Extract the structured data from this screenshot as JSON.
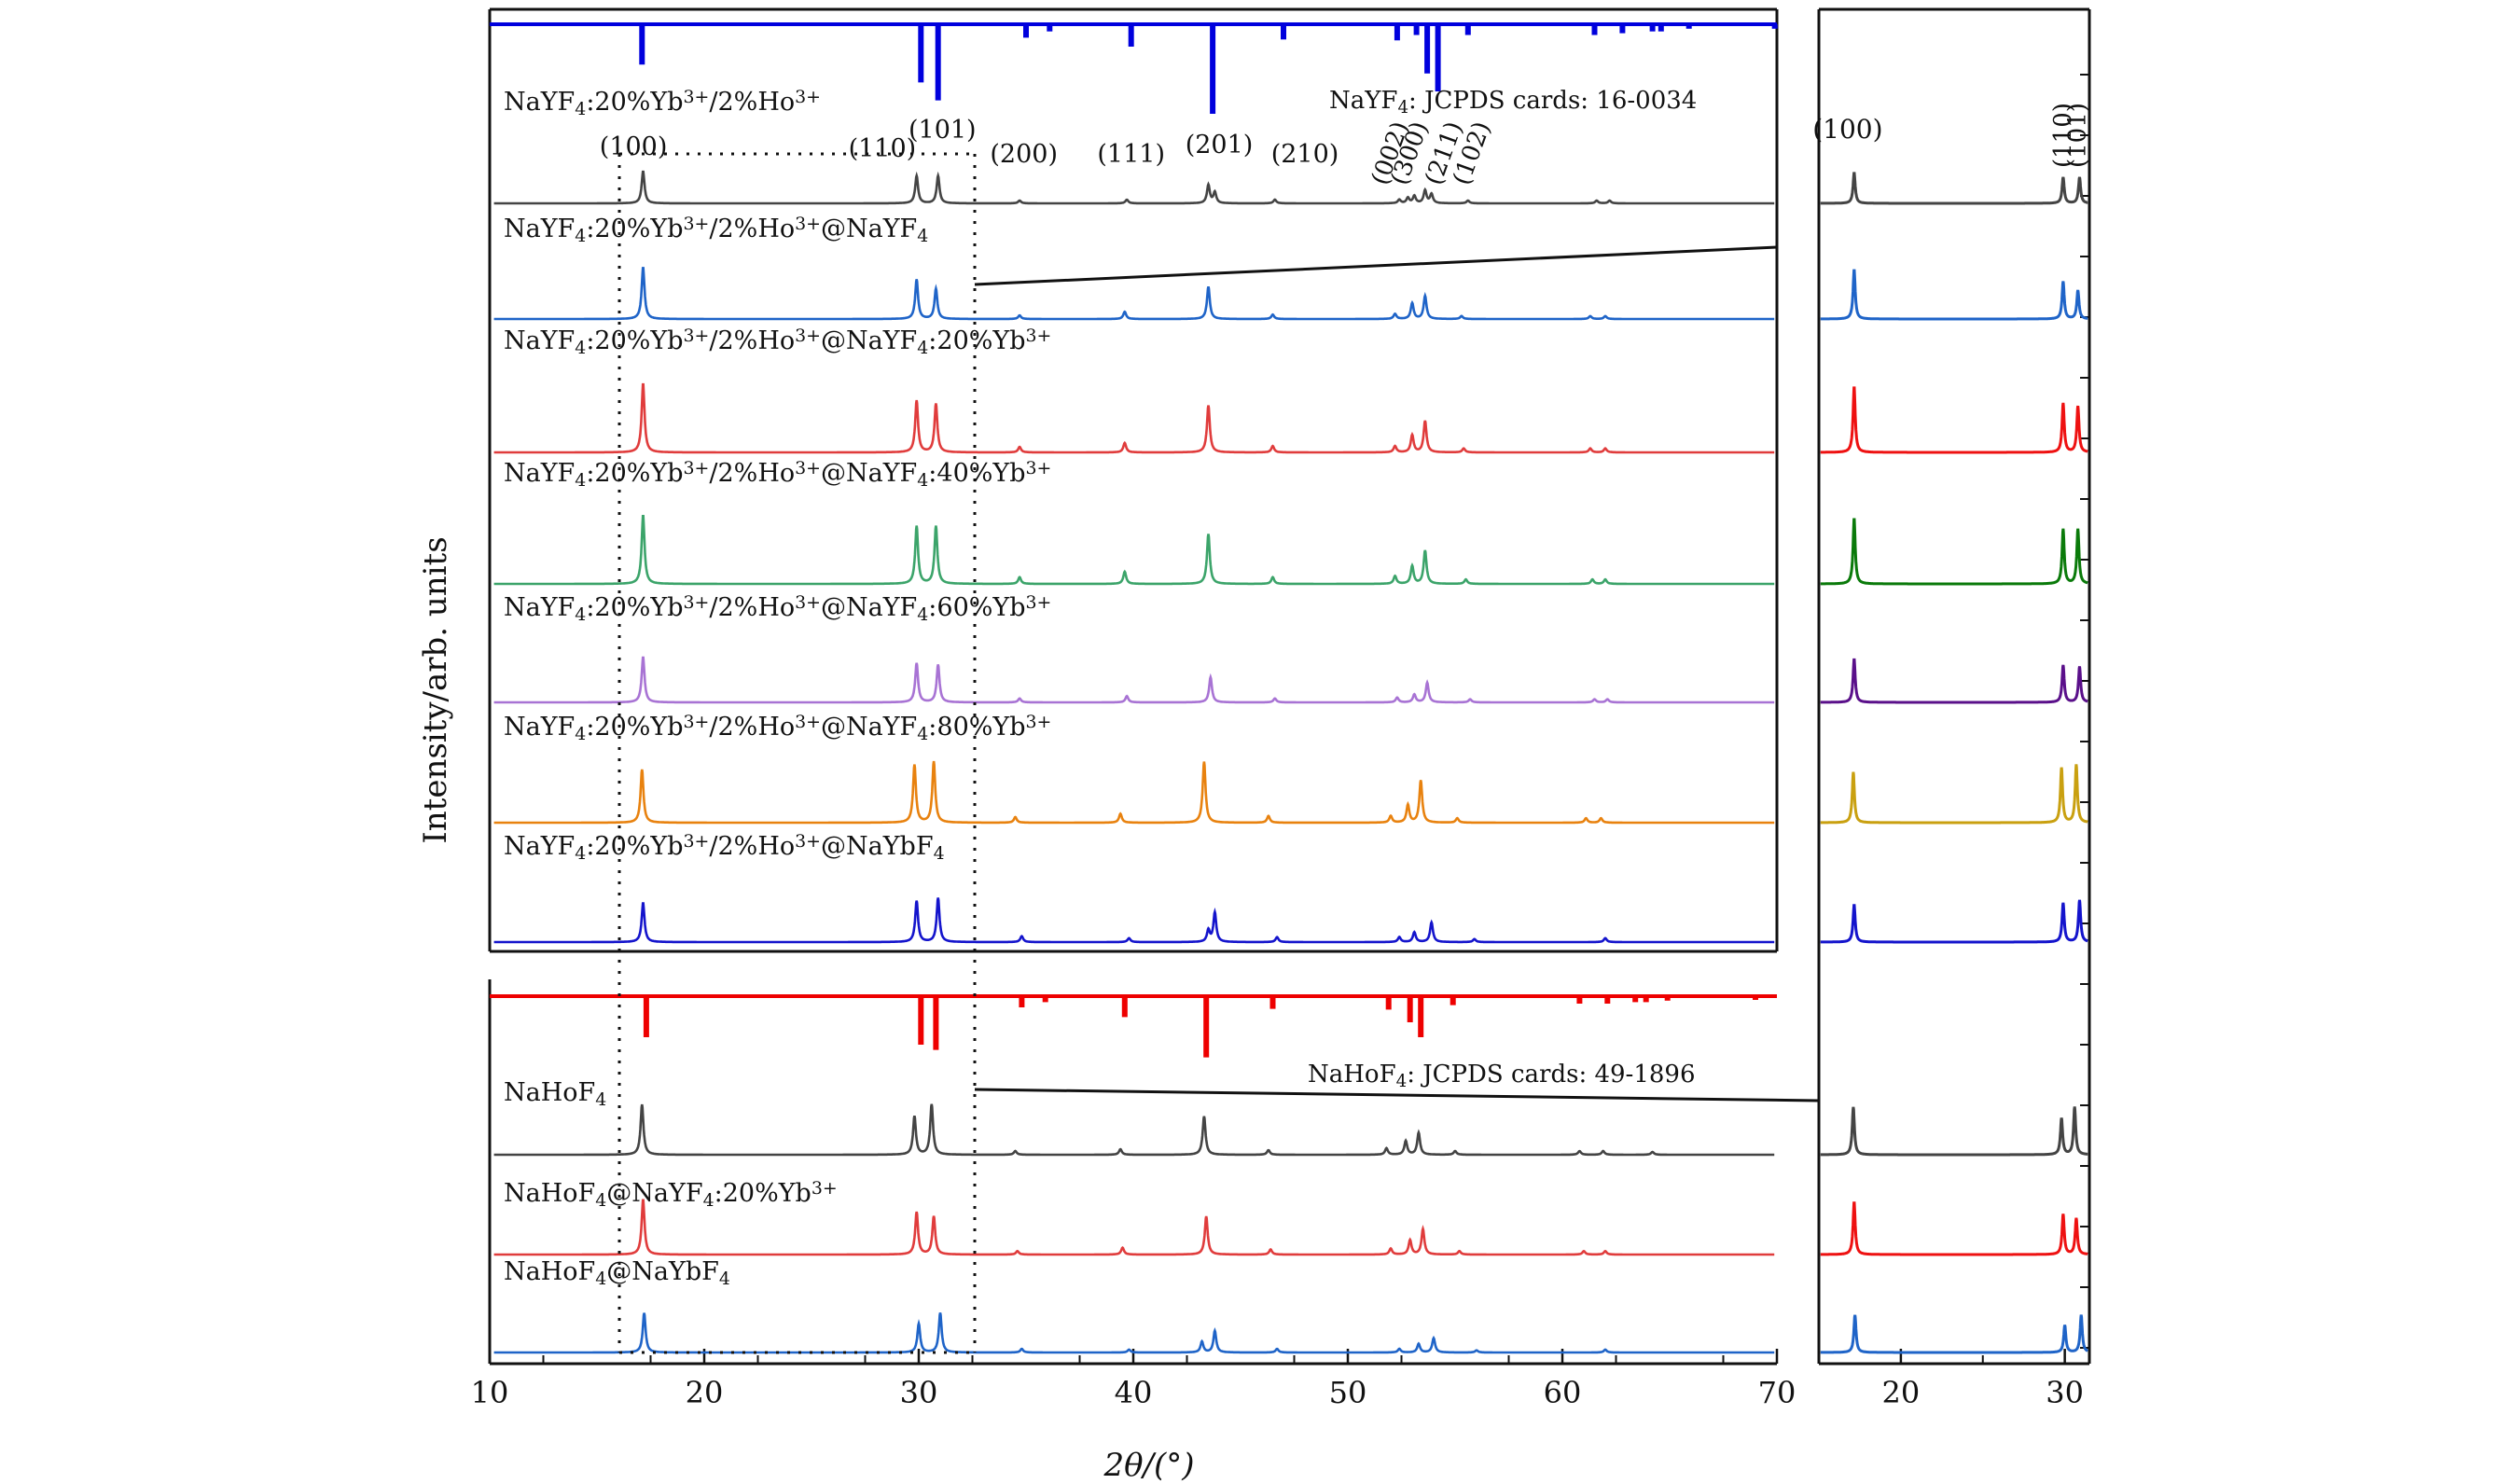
{
  "chart_data": {
    "type": "line",
    "xlabel": "2θ/(°)",
    "ylabel": "Intensity/arb. units",
    "main_panel": {
      "xlim": [
        10,
        70
      ],
      "xticks": [
        10,
        20,
        30,
        40,
        50,
        60,
        70
      ],
      "reference_upper": {
        "label": "NaYF₄: JCPDS cards: 16-0034",
        "color": "#0000dd",
        "sticks": [
          {
            "x": 17.1,
            "h": 0.45
          },
          {
            "x": 30.1,
            "h": 0.65
          },
          {
            "x": 30.9,
            "h": 0.85
          },
          {
            "x": 35.0,
            "h": 0.15
          },
          {
            "x": 36.1,
            "h": 0.08
          },
          {
            "x": 39.9,
            "h": 0.25
          },
          {
            "x": 43.7,
            "h": 1.0
          },
          {
            "x": 47.0,
            "h": 0.17
          },
          {
            "x": 52.3,
            "h": 0.18
          },
          {
            "x": 53.2,
            "h": 0.12
          },
          {
            "x": 53.7,
            "h": 0.55
          },
          {
            "x": 54.2,
            "h": 0.75
          },
          {
            "x": 55.6,
            "h": 0.12
          },
          {
            "x": 61.5,
            "h": 0.12
          },
          {
            "x": 62.8,
            "h": 0.1
          },
          {
            "x": 64.2,
            "h": 0.08
          },
          {
            "x": 64.6,
            "h": 0.08
          },
          {
            "x": 65.9,
            "h": 0.05
          },
          {
            "x": 69.9,
            "h": 0.05
          }
        ]
      },
      "peak_labels": [
        {
          "text": "(100)",
          "x": 16.7,
          "y_off": -22
        },
        {
          "text": "(101)",
          "x": 31.1,
          "y_off": -40
        },
        {
          "text": "(110)",
          "x": 28.3,
          "y_off": -20
        },
        {
          "text": "(200)",
          "x": 34.9,
          "y_off": -14
        },
        {
          "text": "(111)",
          "x": 39.9,
          "y_off": -14
        },
        {
          "text": "(201)",
          "x": 44.0,
          "y_off": -24
        },
        {
          "text": "(210)",
          "x": 48.0,
          "y_off": -14
        }
      ],
      "rotated_peak_labels": [
        {
          "text": "(002)",
          "x": 51.8
        },
        {
          "text": "(300)",
          "x": 52.7
        },
        {
          "text": "(211)",
          "x": 54.3
        },
        {
          "text": "(102)",
          "x": 55.6
        }
      ],
      "reference_lower": {
        "label": "NaHoF₄: JCPDS cards: 49-1896",
        "color": "#ee0000",
        "sticks": [
          {
            "x": 17.3,
            "h": 0.55
          },
          {
            "x": 30.1,
            "h": 0.65
          },
          {
            "x": 30.8,
            "h": 0.72
          },
          {
            "x": 34.8,
            "h": 0.15
          },
          {
            "x": 35.9,
            "h": 0.08
          },
          {
            "x": 39.6,
            "h": 0.28
          },
          {
            "x": 43.4,
            "h": 0.82
          },
          {
            "x": 46.5,
            "h": 0.17
          },
          {
            "x": 51.9,
            "h": 0.18
          },
          {
            "x": 52.9,
            "h": 0.35
          },
          {
            "x": 53.4,
            "h": 0.55
          },
          {
            "x": 54.9,
            "h": 0.12
          },
          {
            "x": 60.8,
            "h": 0.1
          },
          {
            "x": 62.1,
            "h": 0.1
          },
          {
            "x": 63.4,
            "h": 0.08
          },
          {
            "x": 63.9,
            "h": 0.08
          },
          {
            "x": 64.9,
            "h": 0.06
          },
          {
            "x": 69.0,
            "h": 0.05
          }
        ]
      }
    },
    "zoom_panel": {
      "xlim": [
        15,
        31.5
      ],
      "xticks": [
        20,
        30
      ],
      "peak_labels": [
        {
          "text": "(100)",
          "x": 17.1,
          "rotate": false
        },
        {
          "text": "(110)",
          "x": 29.9,
          "rotate": true
        },
        {
          "text": "(101)",
          "x": 30.8,
          "rotate": true
        }
      ]
    },
    "series": [
      {
        "name": "NaYF4:20%Yb3+/2%Ho3+",
        "color": "#444444",
        "zoom_color": "#444444",
        "peaks": [
          [
            17.15,
            0.35
          ],
          [
            29.9,
            0.3
          ],
          [
            30.9,
            0.3
          ],
          [
            34.7,
            0.03
          ],
          [
            39.7,
            0.04
          ],
          [
            43.5,
            0.2
          ],
          [
            43.8,
            0.12
          ],
          [
            46.6,
            0.04
          ],
          [
            52.4,
            0.04
          ],
          [
            52.8,
            0.06
          ],
          [
            53.1,
            0.08
          ],
          [
            53.6,
            0.14
          ],
          [
            53.9,
            0.1
          ],
          [
            55.6,
            0.03
          ],
          [
            61.6,
            0.03
          ],
          [
            62.2,
            0.03
          ]
        ]
      },
      {
        "name": "NaYF4:20%Yb3+/2%Ho3+@NaYF4",
        "color": "#1f64c8",
        "zoom_color": "#1f64c8",
        "peaks": [
          [
            17.15,
            0.72
          ],
          [
            29.9,
            0.55
          ],
          [
            30.8,
            0.42
          ],
          [
            34.7,
            0.05
          ],
          [
            39.6,
            0.1
          ],
          [
            43.5,
            0.45
          ],
          [
            46.5,
            0.06
          ],
          [
            52.2,
            0.07
          ],
          [
            53.0,
            0.22
          ],
          [
            53.6,
            0.32
          ],
          [
            55.3,
            0.04
          ],
          [
            61.3,
            0.04
          ],
          [
            62.0,
            0.04
          ]
        ]
      },
      {
        "name": "NaYF4:20%Yb3+/2%Ho3+@NaYF4:20%Yb3+",
        "color": "#e03c3c",
        "zoom_color": "#ee1111",
        "peaks": [
          [
            17.15,
            0.88
          ],
          [
            29.9,
            0.66
          ],
          [
            30.8,
            0.62
          ],
          [
            34.7,
            0.07
          ],
          [
            39.6,
            0.12
          ],
          [
            43.5,
            0.6
          ],
          [
            46.5,
            0.08
          ],
          [
            52.2,
            0.08
          ],
          [
            53.0,
            0.22
          ],
          [
            53.6,
            0.4
          ],
          [
            55.4,
            0.05
          ],
          [
            61.3,
            0.05
          ],
          [
            62.0,
            0.05
          ]
        ]
      },
      {
        "name": "NaYF4:20%Yb3+/2%Ho3+@NaYF4:40%Yb3+",
        "color": "#3ca46a",
        "zoom_color": "#0a7a0a",
        "peaks": [
          [
            17.15,
            0.62
          ],
          [
            29.9,
            0.52
          ],
          [
            30.8,
            0.52
          ],
          [
            34.7,
            0.06
          ],
          [
            39.6,
            0.11
          ],
          [
            43.5,
            0.45
          ],
          [
            46.5,
            0.06
          ],
          [
            52.2,
            0.07
          ],
          [
            53.0,
            0.16
          ],
          [
            53.6,
            0.3
          ],
          [
            55.5,
            0.04
          ],
          [
            61.4,
            0.04
          ],
          [
            62.0,
            0.04
          ]
        ]
      },
      {
        "name": "NaYF4:20%Yb3+/2%Ho3+@NaYF4:60%Yb3+",
        "color": "#a873d4",
        "zoom_color": "#5a108a",
        "peaks": [
          [
            17.15,
            0.58
          ],
          [
            29.9,
            0.5
          ],
          [
            30.9,
            0.48
          ],
          [
            34.7,
            0.05
          ],
          [
            39.7,
            0.08
          ],
          [
            43.6,
            0.32
          ],
          [
            46.6,
            0.05
          ],
          [
            52.3,
            0.06
          ],
          [
            53.1,
            0.1
          ],
          [
            53.7,
            0.25
          ],
          [
            55.7,
            0.04
          ],
          [
            61.5,
            0.04
          ],
          [
            62.1,
            0.04
          ]
        ]
      },
      {
        "name": "NaYF4:20%Yb3+/2%Ho3+@NaYF4:80%Yb3+",
        "color": "#e8820f",
        "zoom_color": "#c9a010",
        "peaks": [
          [
            17.1,
            0.48
          ],
          [
            29.8,
            0.52
          ],
          [
            30.7,
            0.55
          ],
          [
            34.5,
            0.05
          ],
          [
            39.4,
            0.08
          ],
          [
            43.3,
            0.55
          ],
          [
            46.3,
            0.06
          ],
          [
            52.0,
            0.06
          ],
          [
            52.8,
            0.16
          ],
          [
            53.4,
            0.38
          ],
          [
            55.1,
            0.04
          ],
          [
            61.1,
            0.04
          ],
          [
            61.8,
            0.04
          ]
        ]
      },
      {
        "name": "NaYF4:20%Yb3+/2%Ho3+@NaYbF4",
        "color": "#1414cc",
        "zoom_color": "#1414cc",
        "peaks": [
          [
            17.15,
            0.4
          ],
          [
            29.9,
            0.42
          ],
          [
            30.9,
            0.45
          ],
          [
            34.8,
            0.06
          ],
          [
            39.8,
            0.04
          ],
          [
            43.5,
            0.12
          ],
          [
            43.8,
            0.3
          ],
          [
            46.7,
            0.05
          ],
          [
            52.4,
            0.05
          ],
          [
            53.1,
            0.1
          ],
          [
            53.9,
            0.2
          ],
          [
            55.9,
            0.03
          ],
          [
            62.0,
            0.04
          ]
        ]
      },
      {
        "name": "NaHoF4",
        "color": "#444444",
        "zoom_color": "#444444",
        "peaks": [
          [
            17.1,
            0.55
          ],
          [
            29.8,
            0.42
          ],
          [
            30.6,
            0.55
          ],
          [
            34.5,
            0.04
          ],
          [
            39.4,
            0.06
          ],
          [
            43.3,
            0.42
          ],
          [
            46.3,
            0.05
          ],
          [
            51.8,
            0.07
          ],
          [
            52.7,
            0.15
          ],
          [
            53.3,
            0.24
          ],
          [
            55.0,
            0.04
          ],
          [
            60.8,
            0.04
          ],
          [
            61.9,
            0.04
          ],
          [
            64.2,
            0.03
          ]
        ]
      },
      {
        "name": "NaHoF4@NaYF4:20%Yb3+",
        "color": "#e03c3c",
        "zoom_color": "#ee1111",
        "peaks": [
          [
            17.15,
            0.65
          ],
          [
            29.9,
            0.5
          ],
          [
            30.7,
            0.45
          ],
          [
            34.6,
            0.04
          ],
          [
            39.5,
            0.08
          ],
          [
            43.4,
            0.45
          ],
          [
            46.4,
            0.06
          ],
          [
            52.0,
            0.07
          ],
          [
            52.9,
            0.17
          ],
          [
            53.5,
            0.3
          ],
          [
            55.2,
            0.04
          ],
          [
            61.0,
            0.04
          ],
          [
            62.0,
            0.04
          ]
        ]
      },
      {
        "name": "NaHoF4@NaYbF4",
        "color": "#1f64c8",
        "zoom_color": "#1f64c8",
        "peaks": [
          [
            17.2,
            0.55
          ],
          [
            30.0,
            0.4
          ],
          [
            31.0,
            0.55
          ],
          [
            34.8,
            0.05
          ],
          [
            39.8,
            0.04
          ],
          [
            43.2,
            0.15
          ],
          [
            43.8,
            0.3
          ],
          [
            46.7,
            0.05
          ],
          [
            52.4,
            0.05
          ],
          [
            53.3,
            0.12
          ],
          [
            54.0,
            0.2
          ],
          [
            56.0,
            0.03
          ],
          [
            62.0,
            0.04
          ]
        ]
      }
    ]
  }
}
